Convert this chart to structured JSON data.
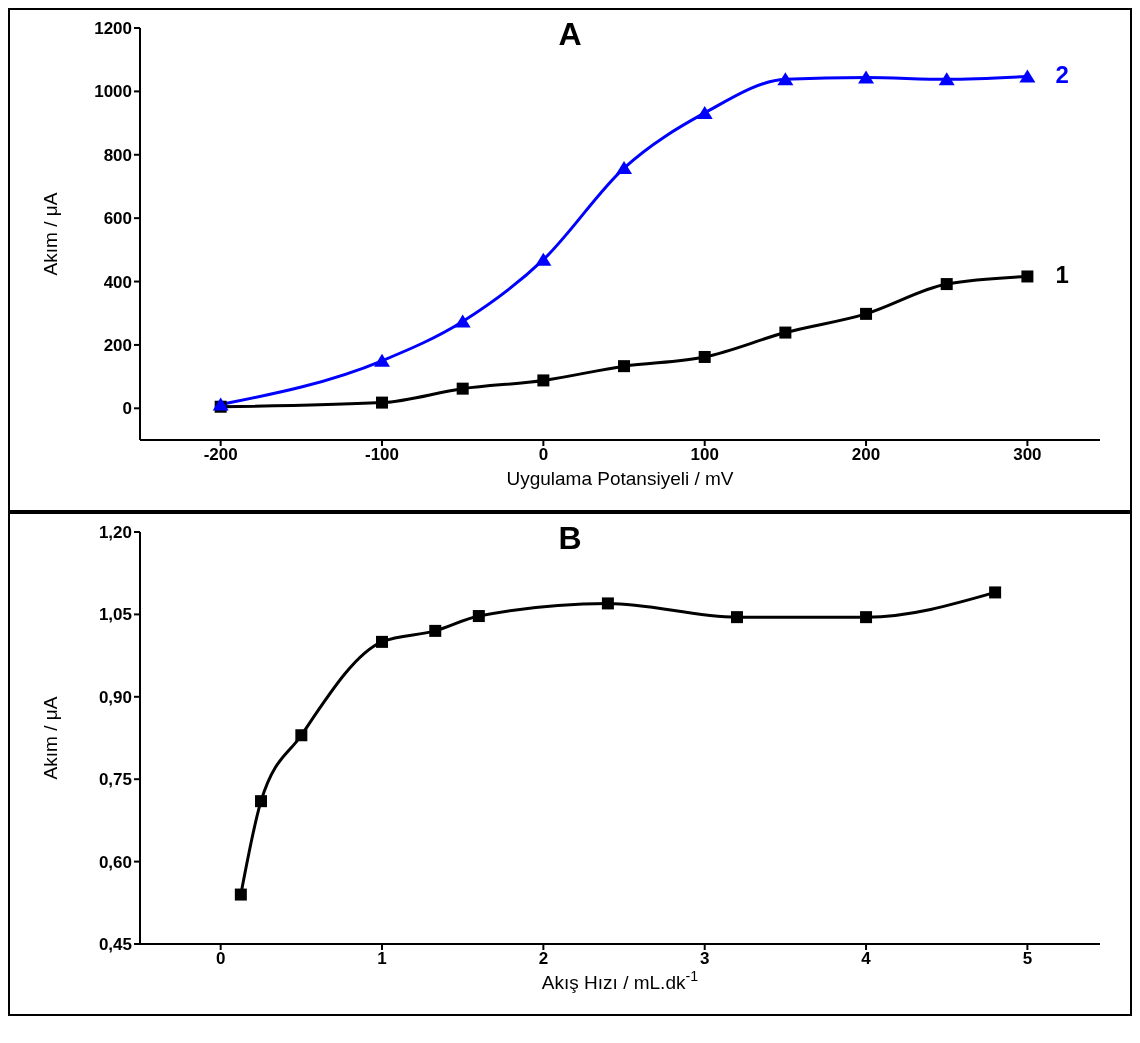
{
  "chart_data": [
    {
      "type": "line",
      "title": "A",
      "xlabel": "Uygulama Potansiyeli  / mV",
      "ylabel": "Akım / μA",
      "xlim": [
        -250,
        345
      ],
      "xticks": [
        -200,
        -100,
        0,
        100,
        200,
        300
      ],
      "ylim": [
        -100,
        1200
      ],
      "yticks": [
        0,
        200,
        400,
        600,
        800,
        1000,
        1200
      ],
      "grid": false,
      "line_style": "solid",
      "series": [
        {
          "name": "1",
          "color": "#000000",
          "marker": "square",
          "x": [
            -200,
            -100,
            -50,
            0,
            50,
            100,
            150,
            200,
            250,
            300
          ],
          "values": [
            5,
            18,
            62,
            88,
            133,
            162,
            239,
            298,
            392,
            416
          ]
        },
        {
          "name": "2",
          "color": "#0000ff",
          "marker": "triangle",
          "x": [
            -200,
            -100,
            -50,
            0,
            50,
            100,
            150,
            200,
            250,
            300
          ],
          "values": [
            12,
            150,
            274,
            469,
            758,
            932,
            1038,
            1044,
            1038,
            1047
          ]
        }
      ]
    },
    {
      "type": "line",
      "title": "B",
      "xlabel": "Akış Hızı  / mL.dk$^{-1}$",
      "ylabel": "Akım / μA",
      "xlim": [
        -0.5,
        5.45
      ],
      "xticks": [
        0,
        1,
        2,
        3,
        4,
        5
      ],
      "ylim": [
        0.45,
        1.2
      ],
      "yticks": [
        {
          "value": 0.45,
          "label": "0,45"
        },
        {
          "value": 0.6,
          "label": "0,60"
        },
        {
          "value": 0.75,
          "label": "0,75"
        },
        {
          "value": 0.9,
          "label": "0,90"
        },
        {
          "value": 1.05,
          "label": "1,05"
        },
        {
          "value": 1.2,
          "label": "1,20"
        }
      ],
      "grid": false,
      "line_style": "solid",
      "series": [
        {
          "color": "#000000",
          "marker": "square",
          "x": [
            0.125,
            0.25,
            0.5,
            1,
            1.33,
            1.6,
            2.4,
            3.2,
            4,
            4.8
          ],
          "values": [
            0.54,
            0.71,
            0.83,
            1.0,
            1.02,
            1.047,
            1.07,
            1.045,
            1.045,
            1.09
          ]
        }
      ]
    }
  ]
}
